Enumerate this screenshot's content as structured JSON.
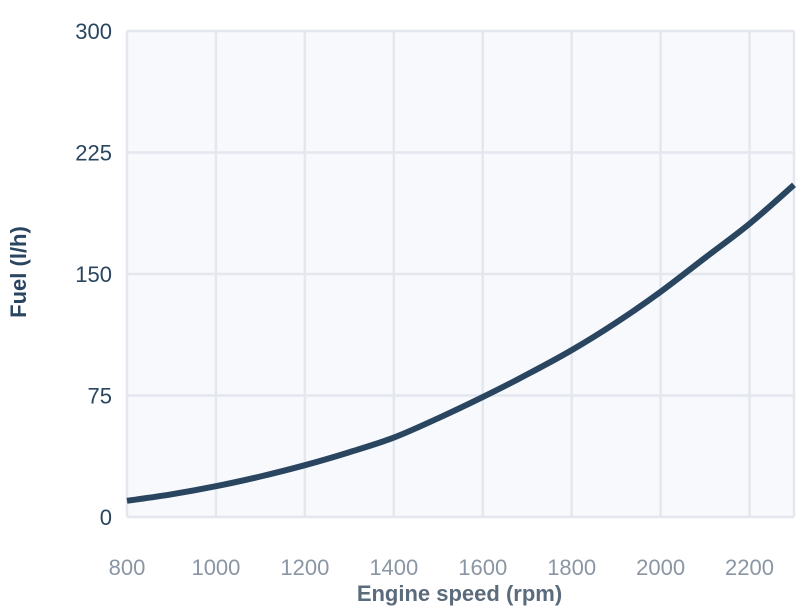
{
  "chart_data": {
    "type": "line",
    "title": "",
    "xlabel": "Engine speed (rpm)",
    "ylabel": "Fuel (l/h)",
    "xlim": [
      800,
      2300
    ],
    "ylim": [
      0,
      300
    ],
    "x_ticks": [
      800,
      1000,
      1200,
      1400,
      1600,
      1800,
      2000,
      2200
    ],
    "y_ticks": [
      0,
      75,
      150,
      225,
      300
    ],
    "grid": true,
    "legend": "none",
    "series": [
      {
        "x": [
          800,
          900,
          1000,
          1100,
          1200,
          1300,
          1400,
          1500,
          1600,
          1700,
          1800,
          1900,
          2000,
          2100,
          2200,
          2300
        ],
        "y": [
          10,
          14,
          19,
          25,
          32,
          40,
          49,
          61,
          74,
          88,
          103,
          120,
          139,
          160,
          181,
          205
        ],
        "color": "#2a4560"
      }
    ],
    "colors": {
      "plot_bg": "#f7f9fc",
      "grid": "#e4e8ee",
      "line": "#2a4560",
      "y_tick_text": "#2a4560",
      "x_tick_text": "#8a96a4",
      "y_title_text": "#2a4560",
      "x_title_text": "#5b6b7c"
    }
  }
}
